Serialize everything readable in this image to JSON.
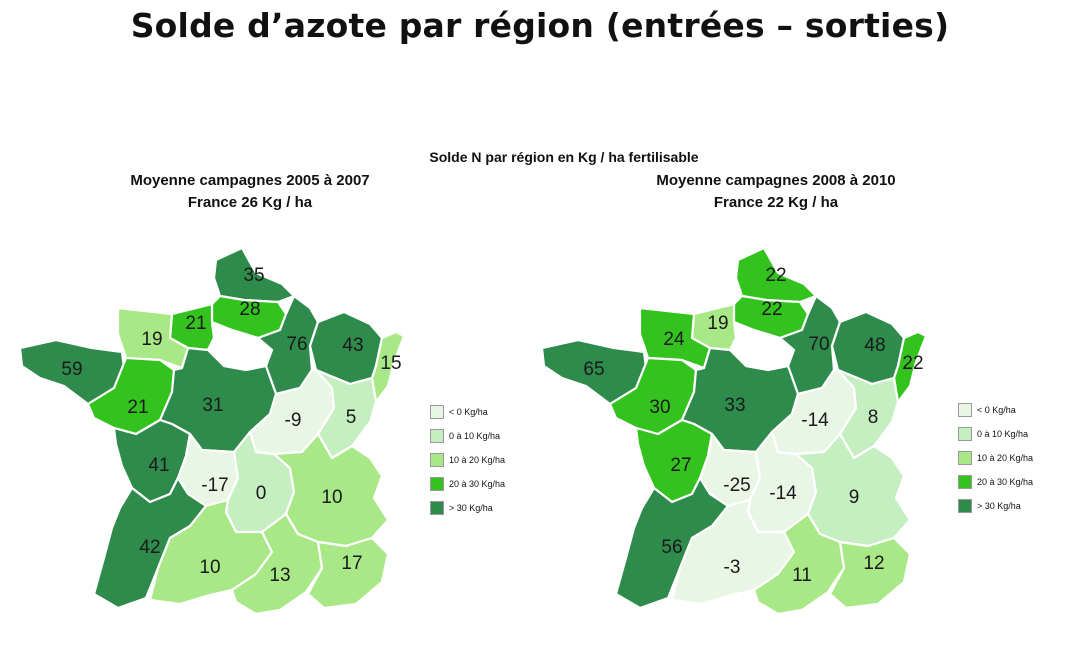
{
  "title": "Solde d’azote par région (entrées – sorties)",
  "subtitle": "Solde N par région en Kg / ha fertilisable",
  "classes": [
    {
      "label": "< 0 Kg/ha",
      "color": "#e9f6e6"
    },
    {
      "label": "0 à 10 Kg/ha",
      "color": "#c5efc0"
    },
    {
      "label": "10 à 20 Kg/ha",
      "color": "#a9e886"
    },
    {
      "label": "20 à 30 Kg/ha",
      "color": "#33c21e"
    },
    {
      "label": "> 30 Kg/ha",
      "color": "#2e8b4c"
    }
  ],
  "maps": [
    {
      "period": "Moyenne campagnes 2005 à 2007",
      "national": "France 26 Kg / ha",
      "regions": {
        "nord_pas_de_calais": {
          "value": "35",
          "class": 4
        },
        "picardie": {
          "value": "28",
          "class": 3
        },
        "haute_normandie": {
          "value": "21",
          "class": 3
        },
        "basse_normandie": {
          "value": "19",
          "class": 2
        },
        "champagne_ardenne": {
          "value": "76",
          "class": 4
        },
        "lorraine": {
          "value": "43",
          "class": 4
        },
        "alsace": {
          "value": "15",
          "class": 2
        },
        "bretagne": {
          "value": "59",
          "class": 4
        },
        "pays_de_la_loire": {
          "value": "21",
          "class": 3
        },
        "centre": {
          "value": "31",
          "class": 4
        },
        "bourgogne": {
          "value": "-9",
          "class": 0
        },
        "franche_comte": {
          "value": "5",
          "class": 1
        },
        "poitou_charentes": {
          "value": "41",
          "class": 4
        },
        "limousin": {
          "value": "-17",
          "class": 0
        },
        "auvergne": {
          "value": "0",
          "class": 1
        },
        "rhone_alpes": {
          "value": "10",
          "class": 2
        },
        "aquitaine": {
          "value": "42",
          "class": 4
        },
        "midi_pyrenees": {
          "value": "10",
          "class": 2
        },
        "languedoc_roussillon": {
          "value": "13",
          "class": 2
        },
        "paca": {
          "value": "17",
          "class": 2
        },
        "ile_de_france": {
          "value": "",
          "class": -1
        }
      }
    },
    {
      "period": "Moyenne campagnes 2008 à 2010",
      "national": "France 22 Kg / ha",
      "regions": {
        "nord_pas_de_calais": {
          "value": "22",
          "class": 3
        },
        "picardie": {
          "value": "22",
          "class": 3
        },
        "haute_normandie": {
          "value": "19",
          "class": 2
        },
        "basse_normandie": {
          "value": "24",
          "class": 3
        },
        "champagne_ardenne": {
          "value": "70",
          "class": 4
        },
        "lorraine": {
          "value": "48",
          "class": 4
        },
        "alsace": {
          "value": "22",
          "class": 3
        },
        "bretagne": {
          "value": "65",
          "class": 4
        },
        "pays_de_la_loire": {
          "value": "30",
          "class": 3
        },
        "centre": {
          "value": "33",
          "class": 4
        },
        "bourgogne": {
          "value": "-14",
          "class": 0
        },
        "franche_comte": {
          "value": "8",
          "class": 1
        },
        "poitou_charentes": {
          "value": "27",
          "class": 3
        },
        "limousin": {
          "value": "-25",
          "class": 0
        },
        "auvergne": {
          "value": "-14",
          "class": 0
        },
        "rhone_alpes": {
          "value": "9",
          "class": 1
        },
        "aquitaine": {
          "value": "56",
          "class": 4
        },
        "midi_pyrenees": {
          "value": "-3",
          "class": 0
        },
        "languedoc_roussillon": {
          "value": "11",
          "class": 2
        },
        "paca": {
          "value": "12",
          "class": 2
        },
        "ile_de_france": {
          "value": "",
          "class": -1
        }
      }
    }
  ]
}
